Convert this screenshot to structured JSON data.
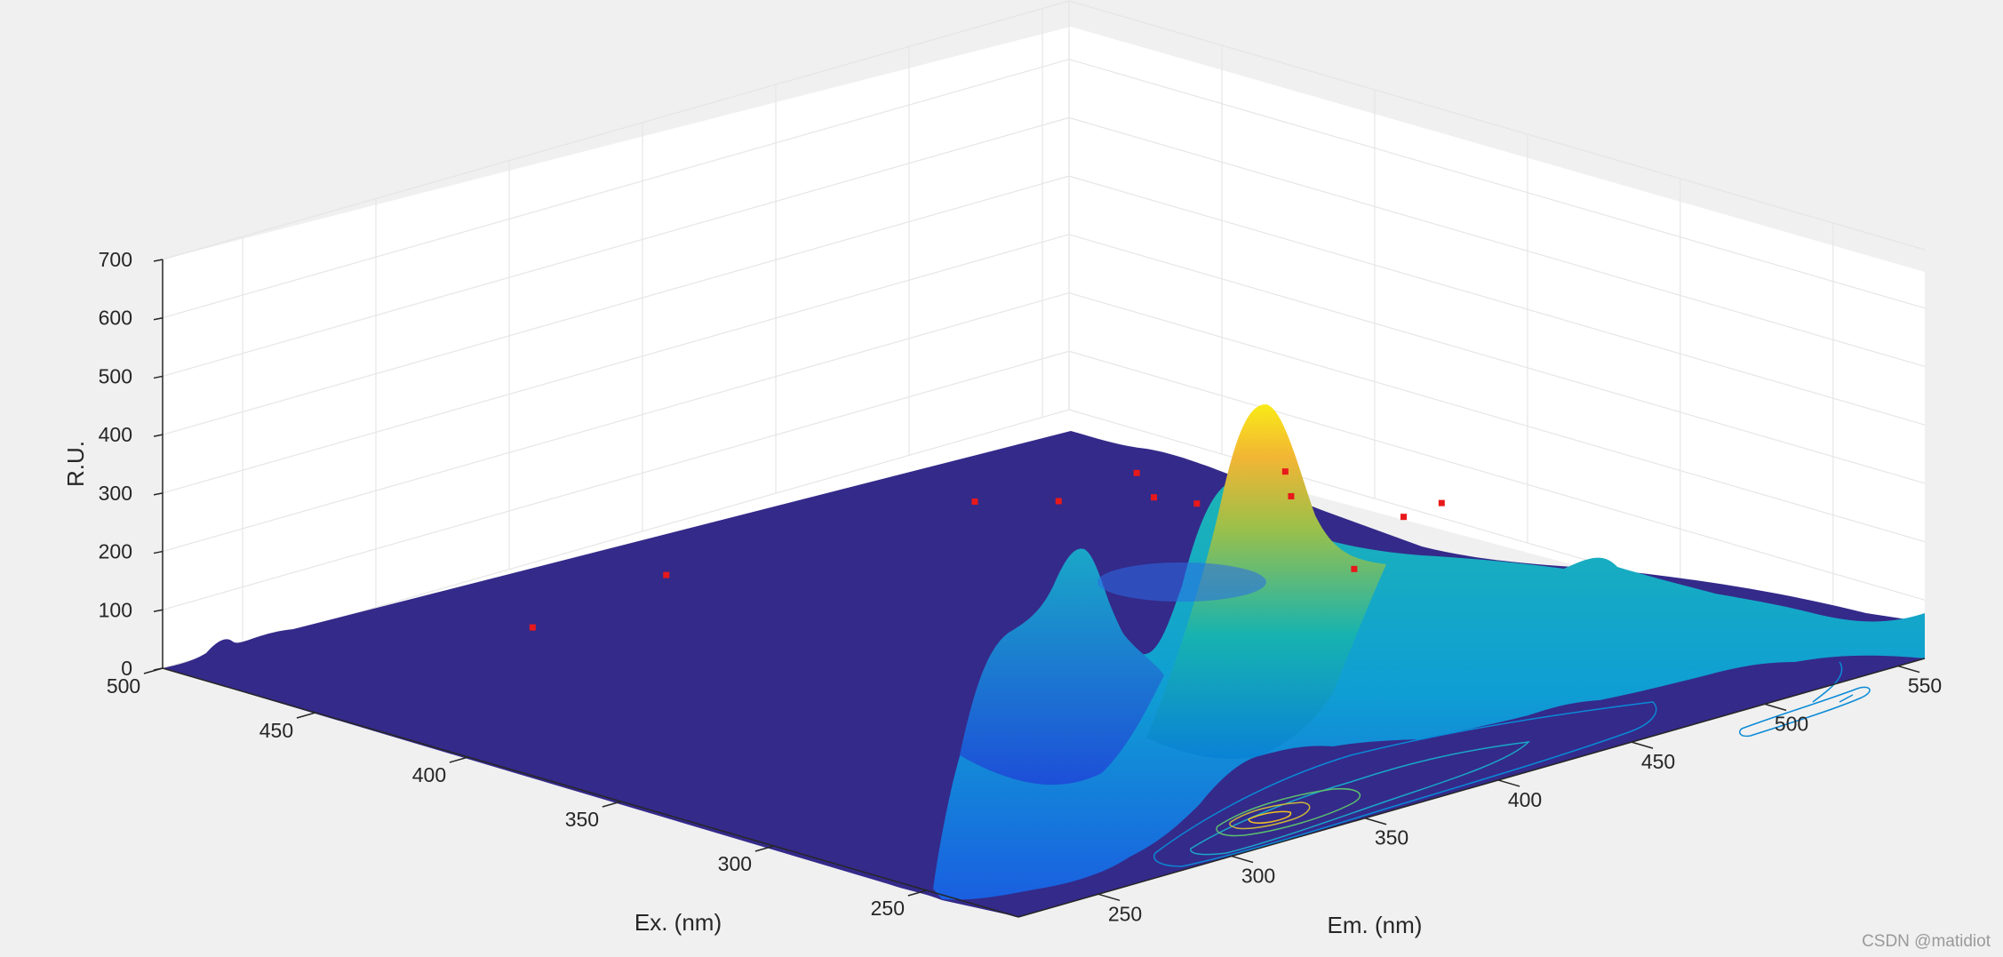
{
  "chart_data": {
    "type": "surface",
    "title": "",
    "xlabel": "Em. (nm)",
    "ylabel": "Ex. (nm)",
    "zlabel": "R.U.",
    "xlim": [
      220,
      560
    ],
    "ylim": [
      220,
      500
    ],
    "zlim": [
      0,
      700
    ],
    "x_ticks": [
      "250",
      "300",
      "350",
      "400",
      "450",
      "500",
      "550"
    ],
    "y_ticks": [
      "250",
      "300",
      "350",
      "400",
      "450",
      "500"
    ],
    "z_ticks": [
      "0",
      "100",
      "200",
      "300",
      "400",
      "500",
      "600",
      "700"
    ],
    "grid": true,
    "colormap": "parula",
    "peaks": [
      {
        "em": 350,
        "ex": 275,
        "intensity": 455
      },
      {
        "em": 300,
        "ex": 405,
        "intensity": 200
      },
      {
        "em": 290,
        "ex": 440,
        "intensity": 70
      },
      {
        "em": 410,
        "ex": 400,
        "intensity": 190
      },
      {
        "em": 430,
        "ex": 390,
        "intensity": 180
      },
      {
        "em": 460,
        "ex": 385,
        "intensity": 155
      },
      {
        "em": 465,
        "ex": 395,
        "intensity": 175
      },
      {
        "em": 495,
        "ex": 350,
        "intensity": 40
      },
      {
        "em": 500,
        "ex": 375,
        "intensity": 120
      },
      {
        "em": 515,
        "ex": 390,
        "intensity": 120
      },
      {
        "em": 525,
        "ex": 360,
        "intensity": 75
      },
      {
        "em": 545,
        "ex": 365,
        "intensity": 65
      }
    ],
    "contour_levels": [
      30,
      80,
      150,
      250,
      350
    ]
  },
  "watermark": "CSDN @matidiot"
}
